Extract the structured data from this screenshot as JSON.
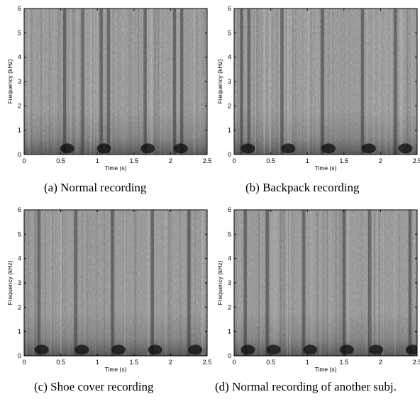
{
  "chart_data": [
    {
      "type": "heatmap",
      "caption": "(a) Normal recording",
      "xlabel": "Time (s)",
      "ylabel": "Frequency (kHz)",
      "xlim": [
        0,
        2.5
      ],
      "ylim": [
        0,
        6
      ],
      "xticks": [
        "0",
        "0.5",
        "1",
        "1.5",
        "2",
        "2.5"
      ],
      "yticks": [
        "0",
        "1",
        "2",
        "3",
        "4",
        "5",
        "6"
      ],
      "colormap": "grayscale",
      "vertical_bands_s": [
        0.55,
        0.8,
        1.05,
        1.15,
        1.65,
        2.05,
        2.15
      ],
      "dark_low_freq_bursts_s": [
        0.55,
        1.05,
        1.65,
        2.1
      ]
    },
    {
      "type": "heatmap",
      "caption": "(b) Backpack recording",
      "xlabel": "Time (s)",
      "ylabel": "Frequency (kHz)",
      "xlim": [
        0,
        2.5
      ],
      "ylim": [
        0,
        6
      ],
      "xticks": [
        "0",
        "0.5",
        "1",
        "1.5",
        "2",
        "2.5"
      ],
      "yticks": [
        "0",
        "1",
        "2",
        "3",
        "4",
        "5",
        "6"
      ],
      "colormap": "grayscale",
      "vertical_bands_s": [
        0.1,
        0.2,
        0.65,
        1.2,
        1.75,
        2.2
      ],
      "dark_low_freq_bursts_s": [
        0.15,
        0.7,
        1.25,
        1.8,
        2.3
      ]
    },
    {
      "type": "heatmap",
      "caption": "(c) Shoe cover recording",
      "xlabel": "Time (s)",
      "ylabel": "Frequency (kHz)",
      "xlim": [
        0,
        2.5
      ],
      "ylim": [
        0,
        6
      ],
      "xticks": [
        "0",
        "0.5",
        "1",
        "1.5",
        "2",
        "2.5"
      ],
      "yticks": [
        "0",
        "1",
        "2",
        "3",
        "4",
        "5",
        "6"
      ],
      "colormap": "grayscale",
      "vertical_bands_s": [
        0.2,
        0.7,
        1.2,
        1.75,
        2.25
      ],
      "dark_low_freq_bursts_s": [
        0.2,
        0.75,
        1.25,
        1.75,
        2.3
      ]
    },
    {
      "type": "heatmap",
      "caption": "(d) Normal recording of another subj.",
      "xlabel": "Time (s)",
      "ylabel": "Frequency (kHz)",
      "xlim": [
        0,
        2.5
      ],
      "ylim": [
        0,
        6
      ],
      "xticks": [
        "0",
        "0.5",
        "1",
        "1.5",
        "2",
        "2.5"
      ],
      "yticks": [
        "0",
        "1",
        "2",
        "3",
        "4",
        "5",
        "6"
      ],
      "colormap": "grayscale",
      "vertical_bands_s": [
        0.15,
        0.45,
        0.95,
        1.5,
        1.85,
        2.4
      ],
      "dark_low_freq_bursts_s": [
        0.15,
        0.5,
        1.0,
        1.5,
        1.9,
        2.4
      ]
    }
  ]
}
